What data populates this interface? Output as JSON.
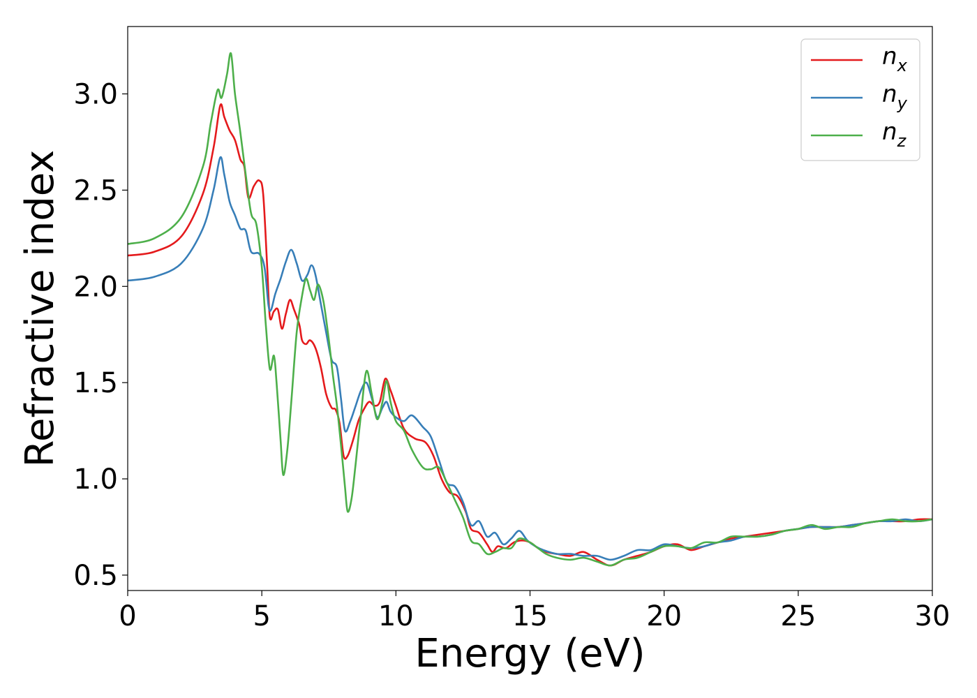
{
  "chart_data": {
    "type": "line",
    "title": "",
    "xlabel": "Energy (eV)",
    "ylabel": "Refractive index",
    "xlim": [
      0,
      30
    ],
    "ylim": [
      0.42,
      3.35
    ],
    "x_ticks": [
      0,
      5,
      10,
      15,
      20,
      25,
      30
    ],
    "y_ticks": [
      0.5,
      1.0,
      1.5,
      2.0,
      2.5,
      3.0
    ],
    "x_tick_labels": [
      "0",
      "5",
      "10",
      "15",
      "20",
      "25",
      "30"
    ],
    "y_tick_labels": [
      "0.5",
      "1.0",
      "1.5",
      "2.0",
      "2.5",
      "3.0"
    ],
    "grid": false,
    "legend_position": "top-right",
    "series": [
      {
        "name": "n_x",
        "label_main": "n",
        "label_sub": "x",
        "color": "#e41a1c",
        "points": [
          [
            0,
            2.16
          ],
          [
            1,
            2.18
          ],
          [
            2,
            2.26
          ],
          [
            2.8,
            2.48
          ],
          [
            3.2,
            2.72
          ],
          [
            3.45,
            2.94
          ],
          [
            3.6,
            2.88
          ],
          [
            3.8,
            2.81
          ],
          [
            4.0,
            2.76
          ],
          [
            4.2,
            2.66
          ],
          [
            4.35,
            2.62
          ],
          [
            4.5,
            2.46
          ],
          [
            4.7,
            2.52
          ],
          [
            4.9,
            2.55
          ],
          [
            5.05,
            2.48
          ],
          [
            5.2,
            2.1
          ],
          [
            5.3,
            1.84
          ],
          [
            5.45,
            1.87
          ],
          [
            5.6,
            1.88
          ],
          [
            5.75,
            1.78
          ],
          [
            5.9,
            1.86
          ],
          [
            6.05,
            1.93
          ],
          [
            6.2,
            1.88
          ],
          [
            6.4,
            1.8
          ],
          [
            6.5,
            1.72
          ],
          [
            6.65,
            1.7
          ],
          [
            6.8,
            1.72
          ],
          [
            7.0,
            1.68
          ],
          [
            7.2,
            1.58
          ],
          [
            7.4,
            1.44
          ],
          [
            7.6,
            1.37
          ],
          [
            7.75,
            1.36
          ],
          [
            7.9,
            1.29
          ],
          [
            8.05,
            1.12
          ],
          [
            8.2,
            1.12
          ],
          [
            8.4,
            1.2
          ],
          [
            8.6,
            1.3
          ],
          [
            8.8,
            1.36
          ],
          [
            9.0,
            1.4
          ],
          [
            9.2,
            1.38
          ],
          [
            9.4,
            1.4
          ],
          [
            9.6,
            1.52
          ],
          [
            9.8,
            1.46
          ],
          [
            10.0,
            1.38
          ],
          [
            10.3,
            1.26
          ],
          [
            10.7,
            1.21
          ],
          [
            11.1,
            1.19
          ],
          [
            11.4,
            1.12
          ],
          [
            11.7,
            1.0
          ],
          [
            12.0,
            0.93
          ],
          [
            12.3,
            0.91
          ],
          [
            12.6,
            0.83
          ],
          [
            12.8,
            0.74
          ],
          [
            13.1,
            0.72
          ],
          [
            13.4,
            0.66
          ],
          [
            13.6,
            0.62
          ],
          [
            13.8,
            0.65
          ],
          [
            14.1,
            0.64
          ],
          [
            14.4,
            0.67
          ],
          [
            14.7,
            0.68
          ],
          [
            15.0,
            0.67
          ],
          [
            15.3,
            0.64
          ],
          [
            15.6,
            0.62
          ],
          [
            16.0,
            0.61
          ],
          [
            16.5,
            0.6
          ],
          [
            17.0,
            0.62
          ],
          [
            17.5,
            0.58
          ],
          [
            18.0,
            0.55
          ],
          [
            18.5,
            0.58
          ],
          [
            19.0,
            0.6
          ],
          [
            19.5,
            0.62
          ],
          [
            20.0,
            0.65
          ],
          [
            20.5,
            0.66
          ],
          [
            21.0,
            0.63
          ],
          [
            21.5,
            0.65
          ],
          [
            22.0,
            0.67
          ],
          [
            22.5,
            0.69
          ],
          [
            23.0,
            0.7
          ],
          [
            23.5,
            0.71
          ],
          [
            24.0,
            0.72
          ],
          [
            24.5,
            0.73
          ],
          [
            25.0,
            0.74
          ],
          [
            25.5,
            0.75
          ],
          [
            26.0,
            0.75
          ],
          [
            26.5,
            0.75
          ],
          [
            27.0,
            0.76
          ],
          [
            27.5,
            0.77
          ],
          [
            28.0,
            0.78
          ],
          [
            28.5,
            0.78
          ],
          [
            29.0,
            0.78
          ],
          [
            29.5,
            0.79
          ],
          [
            30.0,
            0.79
          ]
        ]
      },
      {
        "name": "n_y",
        "label_main": "n",
        "label_sub": "y",
        "color": "#377eb8",
        "points": [
          [
            0,
            2.03
          ],
          [
            1,
            2.05
          ],
          [
            2,
            2.12
          ],
          [
            2.8,
            2.3
          ],
          [
            3.2,
            2.5
          ],
          [
            3.45,
            2.67
          ],
          [
            3.6,
            2.58
          ],
          [
            3.8,
            2.44
          ],
          [
            4.0,
            2.37
          ],
          [
            4.2,
            2.3
          ],
          [
            4.4,
            2.29
          ],
          [
            4.6,
            2.18
          ],
          [
            4.9,
            2.17
          ],
          [
            5.1,
            2.1
          ],
          [
            5.25,
            1.9
          ],
          [
            5.35,
            1.88
          ],
          [
            5.5,
            1.96
          ],
          [
            5.7,
            2.04
          ],
          [
            5.9,
            2.13
          ],
          [
            6.1,
            2.19
          ],
          [
            6.3,
            2.12
          ],
          [
            6.5,
            2.03
          ],
          [
            6.7,
            2.06
          ],
          [
            6.85,
            2.11
          ],
          [
            7.0,
            2.06
          ],
          [
            7.2,
            1.91
          ],
          [
            7.4,
            1.76
          ],
          [
            7.6,
            1.62
          ],
          [
            7.8,
            1.58
          ],
          [
            7.95,
            1.42
          ],
          [
            8.1,
            1.25
          ],
          [
            8.3,
            1.3
          ],
          [
            8.5,
            1.38
          ],
          [
            8.7,
            1.46
          ],
          [
            8.9,
            1.5
          ],
          [
            9.1,
            1.42
          ],
          [
            9.3,
            1.32
          ],
          [
            9.5,
            1.37
          ],
          [
            9.65,
            1.4
          ],
          [
            9.8,
            1.35
          ],
          [
            10.0,
            1.32
          ],
          [
            10.3,
            1.3
          ],
          [
            10.6,
            1.33
          ],
          [
            11.0,
            1.27
          ],
          [
            11.3,
            1.22
          ],
          [
            11.6,
            1.1
          ],
          [
            11.9,
            0.98
          ],
          [
            12.2,
            0.96
          ],
          [
            12.5,
            0.88
          ],
          [
            12.8,
            0.76
          ],
          [
            13.1,
            0.78
          ],
          [
            13.4,
            0.7
          ],
          [
            13.7,
            0.72
          ],
          [
            14.0,
            0.66
          ],
          [
            14.3,
            0.69
          ],
          [
            14.6,
            0.73
          ],
          [
            14.9,
            0.68
          ],
          [
            15.2,
            0.65
          ],
          [
            15.5,
            0.63
          ],
          [
            16.0,
            0.61
          ],
          [
            16.5,
            0.61
          ],
          [
            17.0,
            0.6
          ],
          [
            17.5,
            0.6
          ],
          [
            18.0,
            0.58
          ],
          [
            18.5,
            0.6
          ],
          [
            19.0,
            0.63
          ],
          [
            19.5,
            0.63
          ],
          [
            20.0,
            0.66
          ],
          [
            20.5,
            0.65
          ],
          [
            21.0,
            0.64
          ],
          [
            21.5,
            0.65
          ],
          [
            22.0,
            0.67
          ],
          [
            22.5,
            0.68
          ],
          [
            23.0,
            0.7
          ],
          [
            23.5,
            0.7
          ],
          [
            24.0,
            0.71
          ],
          [
            24.5,
            0.73
          ],
          [
            25.0,
            0.74
          ],
          [
            25.5,
            0.75
          ],
          [
            26.0,
            0.75
          ],
          [
            26.5,
            0.75
          ],
          [
            27.0,
            0.76
          ],
          [
            27.5,
            0.77
          ],
          [
            28.0,
            0.78
          ],
          [
            28.5,
            0.78
          ],
          [
            29.0,
            0.79
          ],
          [
            29.5,
            0.78
          ],
          [
            30.0,
            0.79
          ]
        ]
      },
      {
        "name": "n_z",
        "label_main": "n",
        "label_sub": "z",
        "color": "#4daf4a",
        "points": [
          [
            0,
            2.22
          ],
          [
            1,
            2.25
          ],
          [
            2,
            2.36
          ],
          [
            2.8,
            2.62
          ],
          [
            3.1,
            2.85
          ],
          [
            3.35,
            3.02
          ],
          [
            3.5,
            2.98
          ],
          [
            3.7,
            3.1
          ],
          [
            3.85,
            3.21
          ],
          [
            4.0,
            3.0
          ],
          [
            4.2,
            2.8
          ],
          [
            4.4,
            2.58
          ],
          [
            4.6,
            2.38
          ],
          [
            4.8,
            2.32
          ],
          [
            5.0,
            2.1
          ],
          [
            5.15,
            1.8
          ],
          [
            5.3,
            1.57
          ],
          [
            5.45,
            1.64
          ],
          [
            5.55,
            1.5
          ],
          [
            5.7,
            1.2
          ],
          [
            5.8,
            1.02
          ],
          [
            5.95,
            1.15
          ],
          [
            6.1,
            1.4
          ],
          [
            6.3,
            1.76
          ],
          [
            6.5,
            1.95
          ],
          [
            6.65,
            2.04
          ],
          [
            6.8,
            1.98
          ],
          [
            6.95,
            1.93
          ],
          [
            7.1,
            2.01
          ],
          [
            7.3,
            1.92
          ],
          [
            7.5,
            1.72
          ],
          [
            7.65,
            1.54
          ],
          [
            7.8,
            1.38
          ],
          [
            7.95,
            1.18
          ],
          [
            8.1,
            0.96
          ],
          [
            8.2,
            0.83
          ],
          [
            8.35,
            0.9
          ],
          [
            8.5,
            1.08
          ],
          [
            8.7,
            1.34
          ],
          [
            8.9,
            1.56
          ],
          [
            9.1,
            1.44
          ],
          [
            9.3,
            1.31
          ],
          [
            9.5,
            1.4
          ],
          [
            9.65,
            1.51
          ],
          [
            9.8,
            1.4
          ],
          [
            10.0,
            1.3
          ],
          [
            10.3,
            1.25
          ],
          [
            10.6,
            1.15
          ],
          [
            11.0,
            1.06
          ],
          [
            11.3,
            1.05
          ],
          [
            11.6,
            1.06
          ],
          [
            11.9,
            0.98
          ],
          [
            12.2,
            0.89
          ],
          [
            12.5,
            0.8
          ],
          [
            12.8,
            0.68
          ],
          [
            13.1,
            0.66
          ],
          [
            13.4,
            0.61
          ],
          [
            13.7,
            0.62
          ],
          [
            14.0,
            0.64
          ],
          [
            14.3,
            0.64
          ],
          [
            14.6,
            0.69
          ],
          [
            15.0,
            0.67
          ],
          [
            15.3,
            0.64
          ],
          [
            15.6,
            0.61
          ],
          [
            16.0,
            0.59
          ],
          [
            16.5,
            0.58
          ],
          [
            17.0,
            0.59
          ],
          [
            17.5,
            0.57
          ],
          [
            18.0,
            0.55
          ],
          [
            18.5,
            0.58
          ],
          [
            19.0,
            0.59
          ],
          [
            19.5,
            0.62
          ],
          [
            20.0,
            0.65
          ],
          [
            20.5,
            0.65
          ],
          [
            21.0,
            0.64
          ],
          [
            21.5,
            0.67
          ],
          [
            22.0,
            0.67
          ],
          [
            22.5,
            0.7
          ],
          [
            23.0,
            0.7
          ],
          [
            23.5,
            0.7
          ],
          [
            24.0,
            0.71
          ],
          [
            24.5,
            0.73
          ],
          [
            25.0,
            0.74
          ],
          [
            25.5,
            0.76
          ],
          [
            26.0,
            0.74
          ],
          [
            26.5,
            0.75
          ],
          [
            27.0,
            0.75
          ],
          [
            27.5,
            0.77
          ],
          [
            28.0,
            0.78
          ],
          [
            28.5,
            0.79
          ],
          [
            29.0,
            0.78
          ],
          [
            29.5,
            0.78
          ],
          [
            30.0,
            0.79
          ]
        ]
      }
    ]
  }
}
